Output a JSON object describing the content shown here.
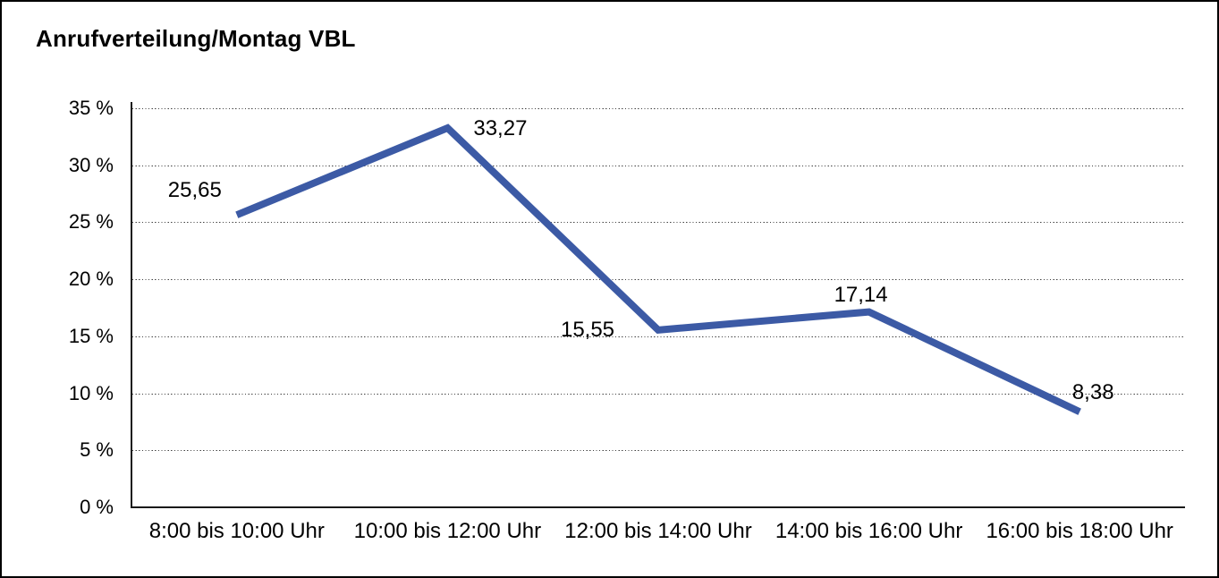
{
  "chart_data": {
    "type": "line",
    "title": "Anrufverteilung/Montag VBL",
    "categories": [
      "8:00 bis 10:00 Uhr",
      "10:00 bis 12:00 Uhr",
      "12:00 bis 14:00 Uhr",
      "14:00 bis 16:00 Uhr",
      "16:00 bis 18:00 Uhr"
    ],
    "values": [
      25.65,
      33.27,
      15.55,
      17.14,
      8.38
    ],
    "point_labels": [
      "25,65",
      "33,27",
      "15,55",
      "17,14",
      "8,38"
    ],
    "unit": "%",
    "xlabel": "",
    "ylabel": "",
    "ylim": [
      0,
      35
    ],
    "ytick_step": 5,
    "ytick_labels": [
      "35 %",
      "30 %",
      "25 %",
      "20 %",
      "15 %",
      "10 %",
      "5 %",
      "0 %"
    ],
    "grid": "horizontal-dotted",
    "legend_position": "none",
    "series_color": "#3C5AA5"
  },
  "colors": {
    "line": "#3C5AA5",
    "grid": "#404040",
    "axis": "#1A1A1A",
    "text": "#000000",
    "frame": "#000000",
    "background": "#FFFFFF"
  }
}
